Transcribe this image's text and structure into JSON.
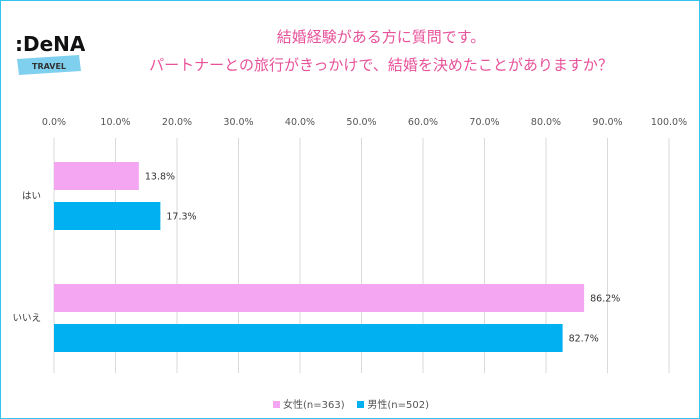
{
  "logo": {
    "text": "DeNA",
    "sub": "TRAVEL"
  },
  "chart_data": {
    "type": "bar",
    "orientation": "horizontal",
    "title": [
      "結婚経験がある方に質問です。",
      "パートナーとの旅行がきっかけで、結婚を決めたことがありますか？"
    ],
    "categories": [
      "はい",
      "いいえ"
    ],
    "series": [
      {
        "name": "女性(n=363)",
        "color": "#f4a6f2",
        "values": [
          13.8,
          86.2
        ],
        "labels": [
          "13.8%",
          "86.2%"
        ]
      },
      {
        "name": "男性(n=502)",
        "color": "#00b0f0",
        "values": [
          17.3,
          82.7
        ],
        "labels": [
          "17.3%",
          "82.7%"
        ]
      }
    ],
    "xlim": [
      0,
      100
    ],
    "ticks": [
      "0.0%",
      "10.0%",
      "20.0%",
      "30.0%",
      "40.0%",
      "50.0%",
      "60.0%",
      "70.0%",
      "80.0%",
      "90.0%",
      "100.0%"
    ],
    "grid": true,
    "legend": "bottom"
  }
}
